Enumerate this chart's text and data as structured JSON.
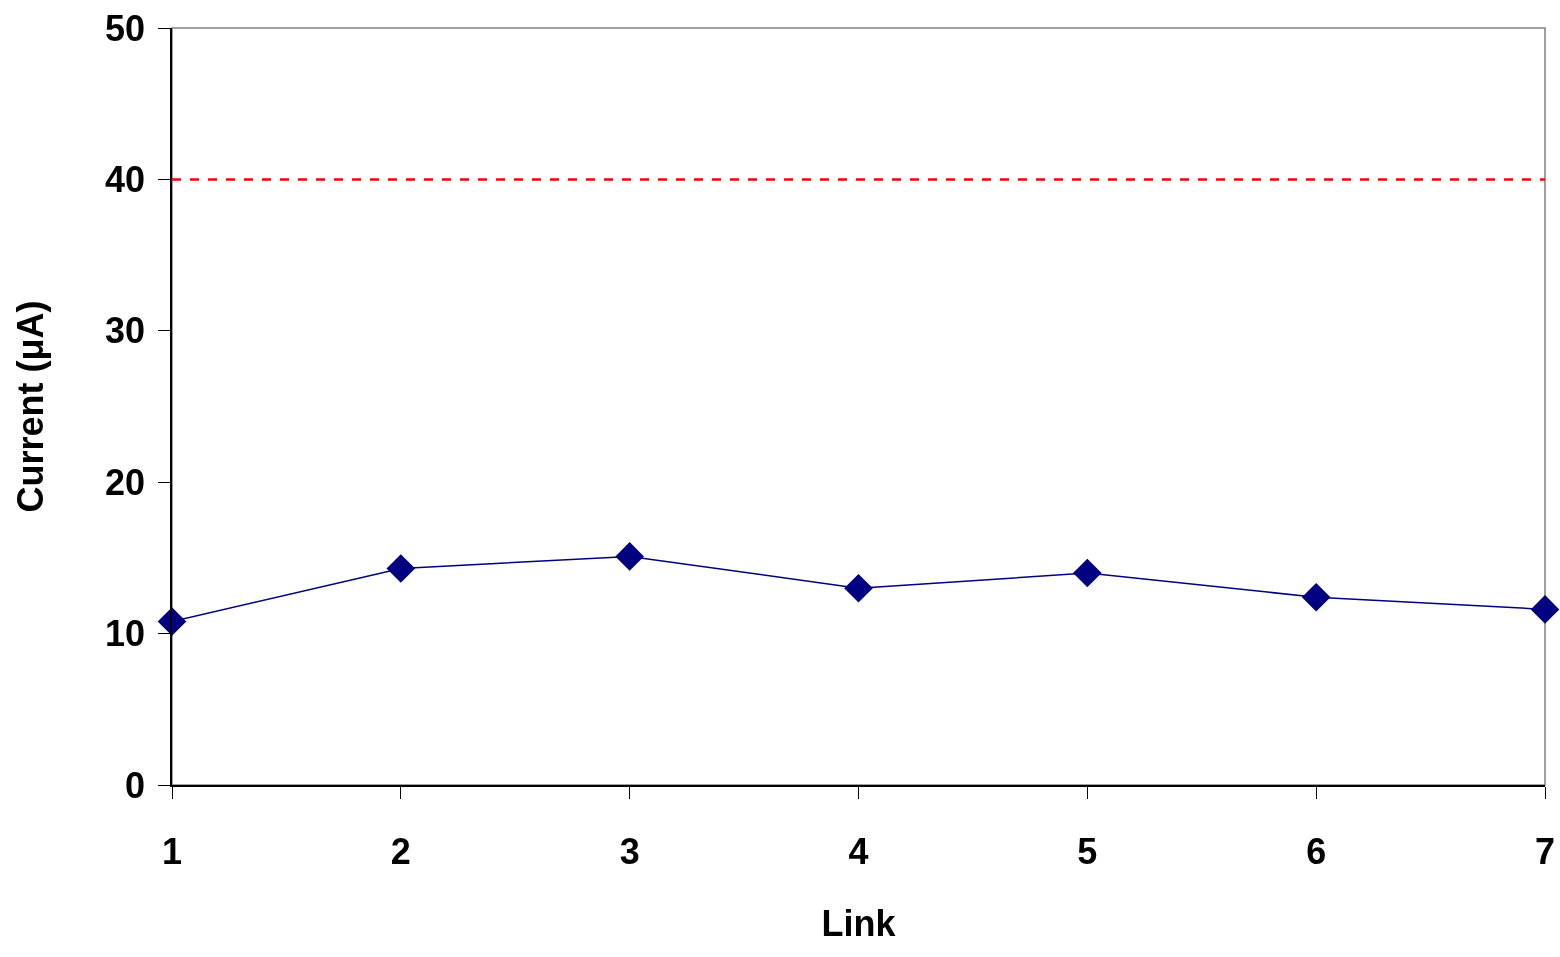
{
  "chart_data": {
    "type": "line",
    "xlabel": "Link",
    "ylabel": "Current (μA)",
    "x": [
      1,
      2,
      3,
      4,
      5,
      6,
      7
    ],
    "series": [
      {
        "color": "#000080",
        "values": [
          10.8,
          14.3,
          15.1,
          13.0,
          14.0,
          12.4,
          11.6
        ]
      }
    ],
    "xlim": [
      1,
      7
    ],
    "xticks": [
      1,
      2,
      3,
      4,
      5,
      6,
      7
    ],
    "ylim": [
      0,
      50
    ],
    "yticks": [
      0,
      10,
      20,
      30,
      40,
      50
    ],
    "ref_lines": [
      {
        "axis": "y",
        "value": 40,
        "color": "#ff0000",
        "line_style": "dashed"
      }
    ],
    "grid": false,
    "marker": "diamond",
    "line_style": "solid"
  }
}
